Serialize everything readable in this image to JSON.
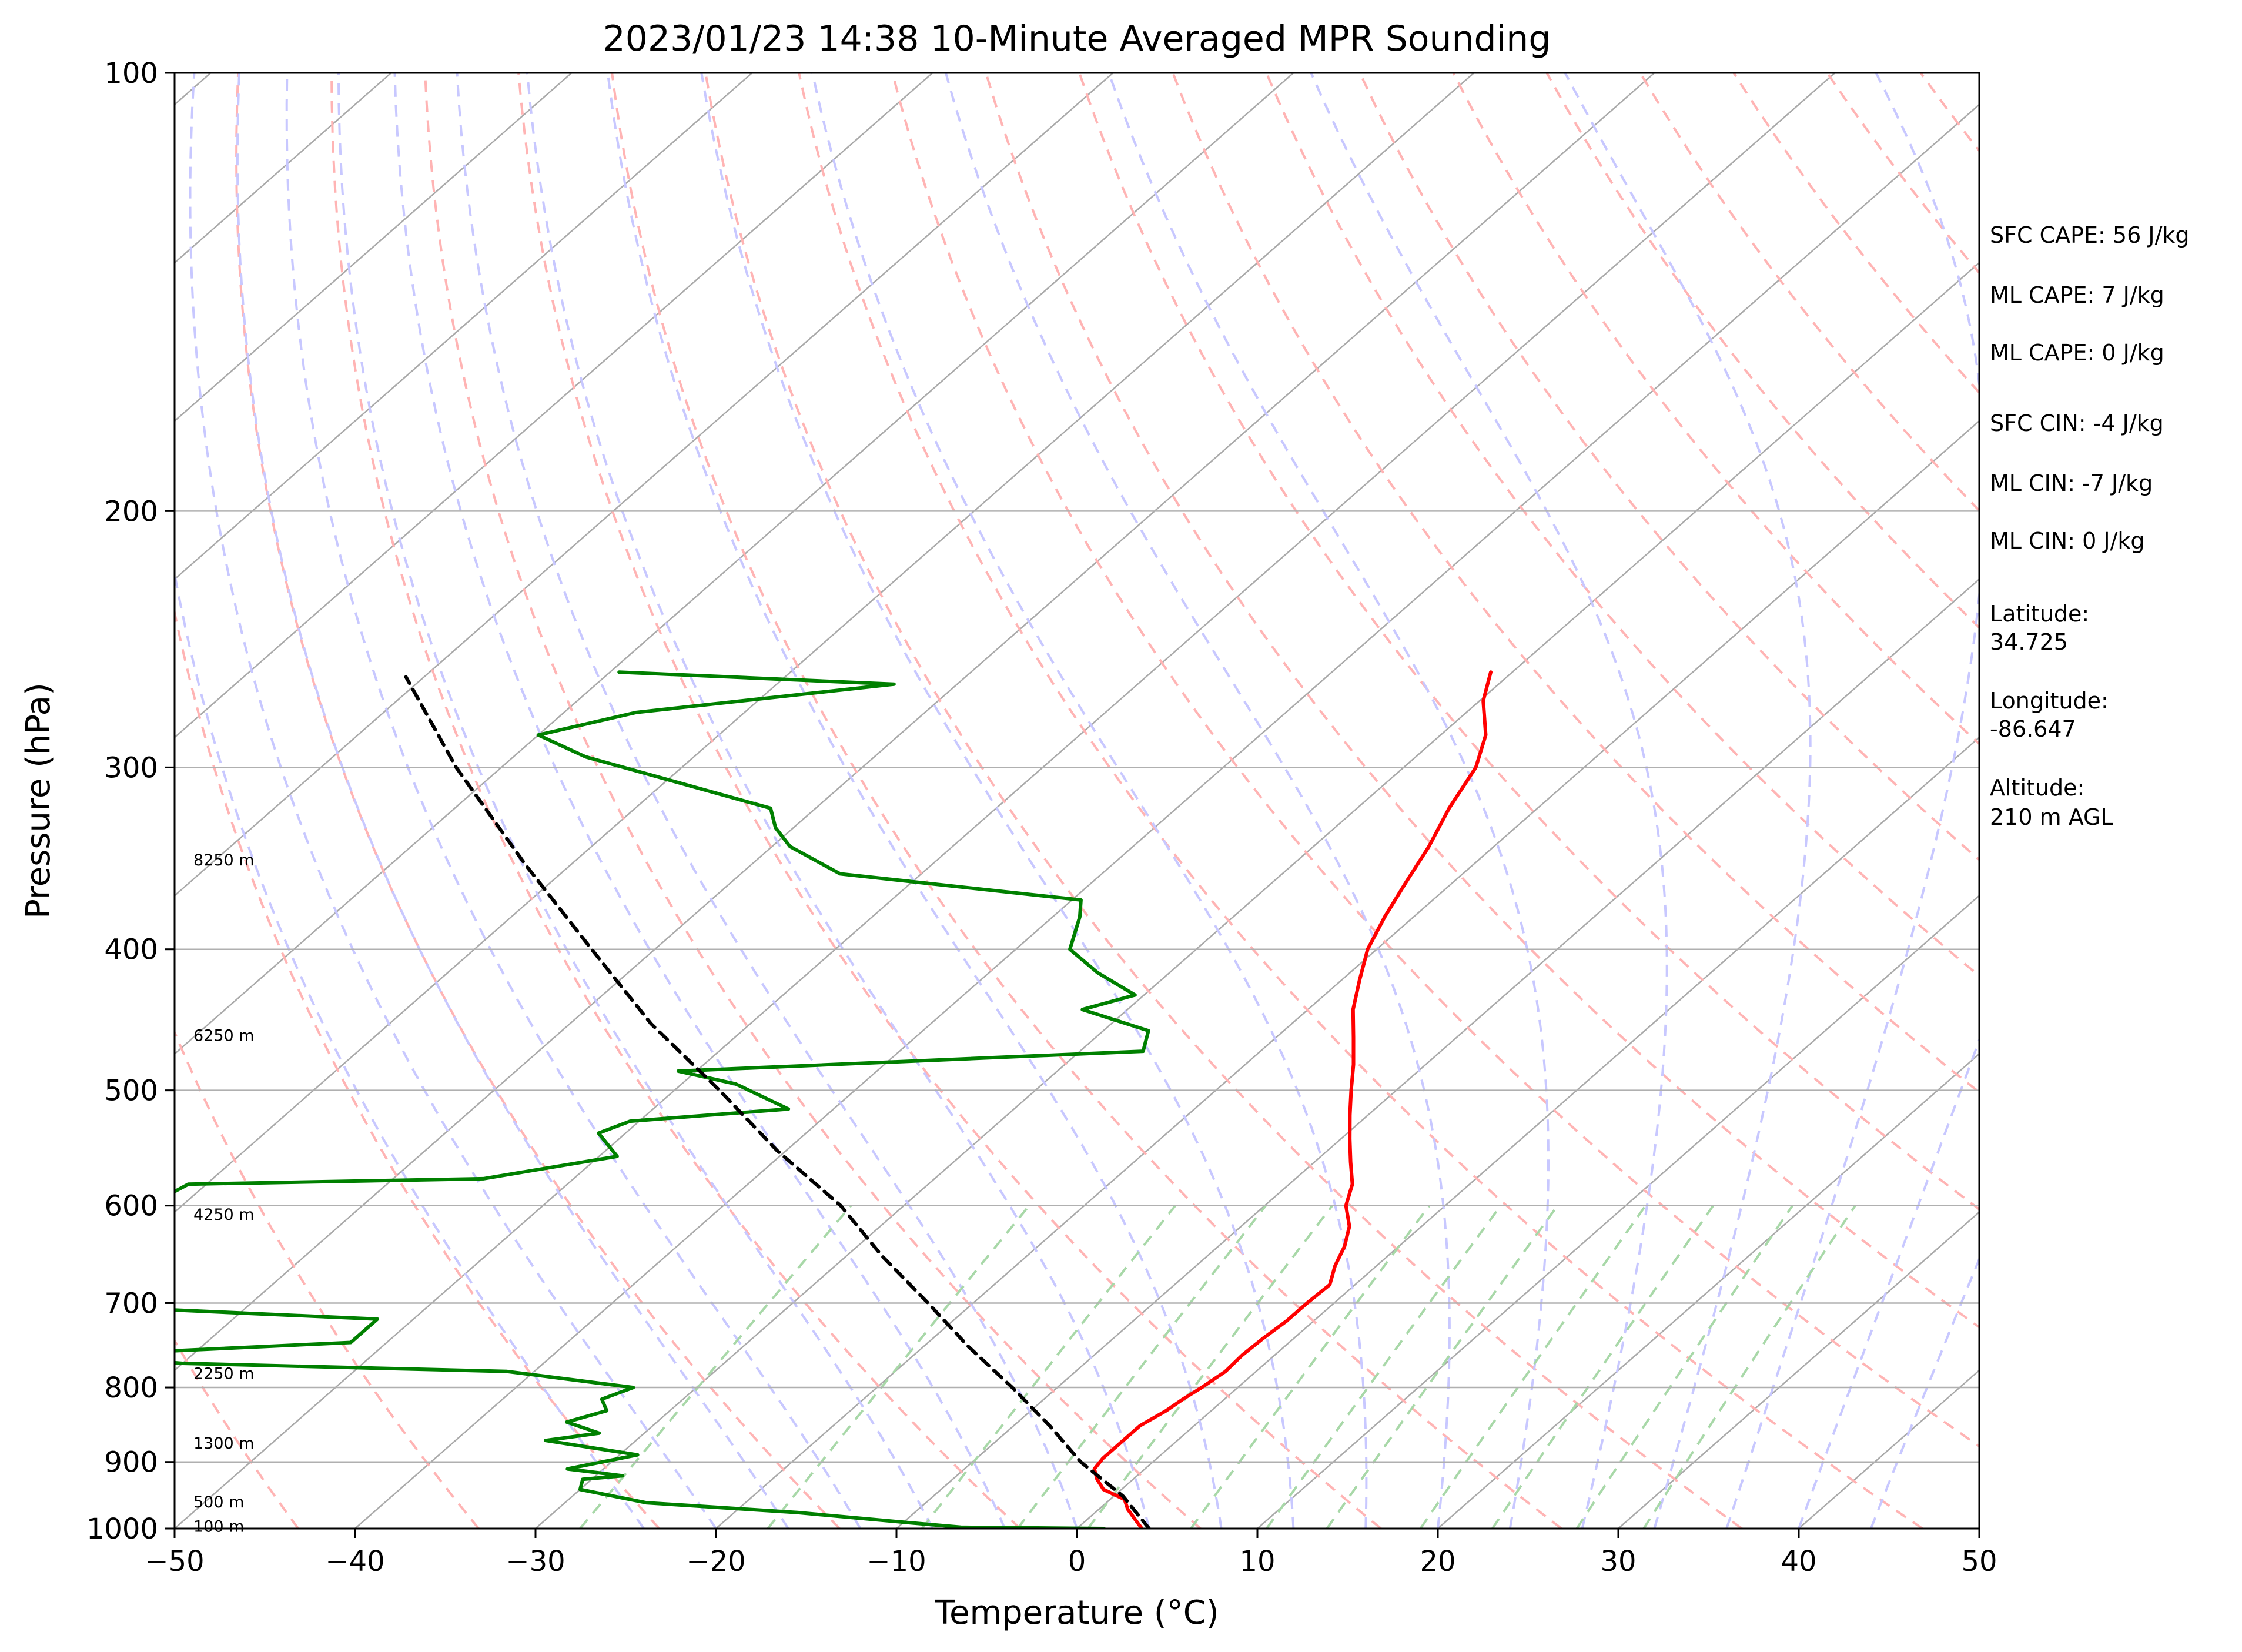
{
  "chart_data": {
    "type": "line",
    "title": "2023/01/23 14:38 10-Minute Averaged MPR Sounding",
    "xlabel": "Temperature (°C)",
    "ylabel": "Pressure (hPa)",
    "xlim": [
      -50,
      50
    ],
    "ylim": [
      1000,
      100
    ],
    "y_scale": "log",
    "x_ticks": [
      -50,
      -40,
      -30,
      -20,
      -10,
      0,
      10,
      20,
      30,
      40,
      50
    ],
    "x_tick_labels": [
      "−50",
      "−40",
      "−30",
      "−20",
      "−10",
      "0",
      "10",
      "20",
      "30",
      "40",
      "50"
    ],
    "y_ticks": [
      100,
      200,
      300,
      400,
      500,
      600,
      700,
      800,
      900,
      1000
    ],
    "y_tick_labels": [
      "100",
      "200",
      "300",
      "400",
      "500",
      "600",
      "700",
      "800",
      "900",
      "1000"
    ],
    "skew_degrees_per_log_decade": 92,
    "series": [
      {
        "role": "temperature",
        "color": "#ff0000",
        "points": [
          [
            1000,
            3.6
          ],
          [
            985,
            2.6
          ],
          [
            970,
            1.6
          ],
          [
            955,
            0.8
          ],
          [
            940,
            -1.0
          ],
          [
            925,
            -2.0
          ],
          [
            910,
            -2.8
          ],
          [
            895,
            -3.0
          ],
          [
            870,
            -3.0
          ],
          [
            850,
            -3.0
          ],
          [
            830,
            -2.5
          ],
          [
            815,
            -2.3
          ],
          [
            800,
            -2.0
          ],
          [
            780,
            -1.7
          ],
          [
            760,
            -1.8
          ],
          [
            740,
            -1.7
          ],
          [
            720,
            -1.5
          ],
          [
            700,
            -1.5
          ],
          [
            680,
            -1.4
          ],
          [
            660,
            -2.3
          ],
          [
            640,
            -3.0
          ],
          [
            620,
            -4.0
          ],
          [
            600,
            -5.5
          ],
          [
            580,
            -6.5
          ],
          [
            560,
            -8.0
          ],
          [
            540,
            -9.5
          ],
          [
            520,
            -11.0
          ],
          [
            500,
            -12.5
          ],
          [
            480,
            -14.0
          ],
          [
            460,
            -15.7
          ],
          [
            440,
            -17.5
          ],
          [
            420,
            -19.0
          ],
          [
            400,
            -20.5
          ],
          [
            380,
            -21.6
          ],
          [
            360,
            -22.6
          ],
          [
            340,
            -23.6
          ],
          [
            320,
            -24.9
          ],
          [
            300,
            -26.0
          ],
          [
            285,
            -27.5
          ],
          [
            270,
            -29.8
          ],
          [
            258,
            -31.2
          ]
        ]
      },
      {
        "role": "dewpoint",
        "color": "#008000",
        "points": [
          [
            1000,
            1.5
          ],
          [
            998,
            -6.5
          ],
          [
            990,
            -10.0
          ],
          [
            975,
            -16.5
          ],
          [
            960,
            -25.5
          ],
          [
            940,
            -30.0
          ],
          [
            925,
            -30.5
          ],
          [
            920,
            -28.5
          ],
          [
            910,
            -32.0
          ],
          [
            890,
            -29.0
          ],
          [
            870,
            -35.0
          ],
          [
            860,
            -32.5
          ],
          [
            845,
            -35.0
          ],
          [
            830,
            -33.5
          ],
          [
            815,
            -34.5
          ],
          [
            800,
            -33.5
          ],
          [
            780,
            -41.5
          ],
          [
            770,
            -60.0
          ],
          [
            760,
            -66.0
          ],
          [
            745,
            -52.0
          ],
          [
            730,
            -52.0
          ],
          [
            718,
            -52.0
          ],
          [
            705,
            -67.0
          ],
          [
            603,
            -72.0
          ],
          [
            580,
            -71.0
          ],
          [
            575,
            -55.0
          ],
          [
            555,
            -49.0
          ],
          [
            535,
            -51.5
          ],
          [
            525,
            -50.5
          ],
          [
            515,
            -42.5
          ],
          [
            495,
            -47.0
          ],
          [
            485,
            -51.0
          ],
          [
            470,
            -26.5
          ],
          [
            455,
            -27.5
          ],
          [
            440,
            -32.5
          ],
          [
            430,
            -30.5
          ],
          [
            415,
            -34.0
          ],
          [
            400,
            -37.0
          ],
          [
            380,
            -38.5
          ],
          [
            370,
            -39.5
          ],
          [
            355,
            -54.5
          ],
          [
            340,
            -59.0
          ],
          [
            330,
            -61.0
          ],
          [
            320,
            -62.5
          ],
          [
            295,
            -76.0
          ],
          [
            285,
            -80.0
          ],
          [
            275,
            -76.0
          ],
          [
            263,
            -63.5
          ],
          [
            258,
            -79.5
          ]
        ]
      },
      {
        "role": "parcel-path",
        "color": "#000000",
        "style": "dashed",
        "points": [
          [
            1000,
            4.0
          ],
          [
            950,
            0.5
          ],
          [
            900,
            -4.0
          ],
          [
            850,
            -8.0
          ],
          [
            800,
            -12.5
          ],
          [
            750,
            -17.5
          ],
          [
            700,
            -22.5
          ],
          [
            650,
            -28.0
          ],
          [
            600,
            -33.5
          ],
          [
            550,
            -40.5
          ],
          [
            500,
            -47.5
          ],
          [
            450,
            -55.5
          ],
          [
            400,
            -63.5
          ],
          [
            350,
            -72.5
          ],
          [
            300,
            -82.5
          ],
          [
            260,
            -91.0
          ]
        ]
      }
    ],
    "background_lines": {
      "isotherm_color": "#a9a9a9",
      "dry_adiabat_color": "#ffb4b4",
      "moist_adiabat_color": "#c8c8ff",
      "mixing_ratio_color": "#a8d8a8"
    },
    "height_labels": [
      {
        "text": "8250 m",
        "pressure": 347
      },
      {
        "text": "6250 m",
        "pressure": 458
      },
      {
        "text": "4250 m",
        "pressure": 608
      },
      {
        "text": "2250 m",
        "pressure": 782
      },
      {
        "text": "1300 m",
        "pressure": 873
      },
      {
        "text": "500 m",
        "pressure": 958
      },
      {
        "text": "100 m",
        "pressure": 996
      }
    ],
    "info_panel": [
      "SFC CAPE: 56 J/kg",
      "ML CAPE: 7 J/kg",
      "ML CAPE: 0 J/kg",
      "SFC CIN: -4 J/kg",
      "ML CIN: -7 J/kg",
      "ML CIN: 0 J/kg",
      "Latitude:",
      "34.725",
      "Longitude:",
      "-86.647",
      "Altitude:",
      "210 m AGL"
    ]
  }
}
